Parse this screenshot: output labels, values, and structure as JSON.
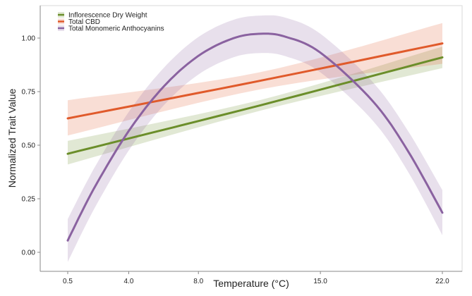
{
  "chart_data": {
    "type": "line",
    "title": "",
    "xlabel": "Temperature (°C)",
    "ylabel": "Normalized Trait Value",
    "xlim": [
      -0.8,
      23.2
    ],
    "ylim": [
      -0.08,
      1.15
    ],
    "x_ticks": [
      0.5,
      4.0,
      8.0,
      15.0,
      22.0
    ],
    "x_tick_labels": [
      "0.5",
      "4.0",
      "8.0",
      "15.0",
      "22.0"
    ],
    "y_ticks": [
      0,
      0.25,
      0.5,
      0.75,
      1.0
    ],
    "y_tick_labels": [
      "0.00",
      "0.25",
      "0.50",
      "0.75",
      "1.00"
    ],
    "grid": false,
    "legend_position": "top-left",
    "series": [
      {
        "name": "Inflorescence Dry Weight",
        "color": "#6b8e2a",
        "x": [
          0.5,
          11.5,
          22.0
        ],
        "y": [
          0.46,
          0.685,
          0.91
        ],
        "lower": [
          0.41,
          0.66,
          0.86
        ],
        "upper": [
          0.52,
          0.71,
          0.96
        ]
      },
      {
        "name": "Total CBD",
        "color": "#e05a2b",
        "x": [
          0.5,
          11.5,
          22.0
        ],
        "y": [
          0.625,
          0.8,
          0.975
        ],
        "lower": [
          0.545,
          0.76,
          0.88
        ],
        "upper": [
          0.71,
          0.84,
          1.07
        ]
      },
      {
        "name": "Total Monomeric Anthocyanins",
        "color": "#8a62a0",
        "x": [
          0.5,
          2,
          4,
          6,
          8,
          10,
          11.6,
          13,
          15,
          18,
          20,
          22
        ],
        "y": [
          0.055,
          0.297,
          0.566,
          0.773,
          0.917,
          0.999,
          1.02,
          1.006,
          0.932,
          0.706,
          0.476,
          0.185
        ],
        "lower": [
          -0.045,
          0.2,
          0.475,
          0.685,
          0.83,
          0.91,
          0.93,
          0.915,
          0.84,
          0.615,
          0.38,
          0.08
        ],
        "upper": [
          0.155,
          0.39,
          0.655,
          0.86,
          1.005,
          1.085,
          1.105,
          1.095,
          1.02,
          0.795,
          0.57,
          0.29
        ]
      }
    ]
  }
}
